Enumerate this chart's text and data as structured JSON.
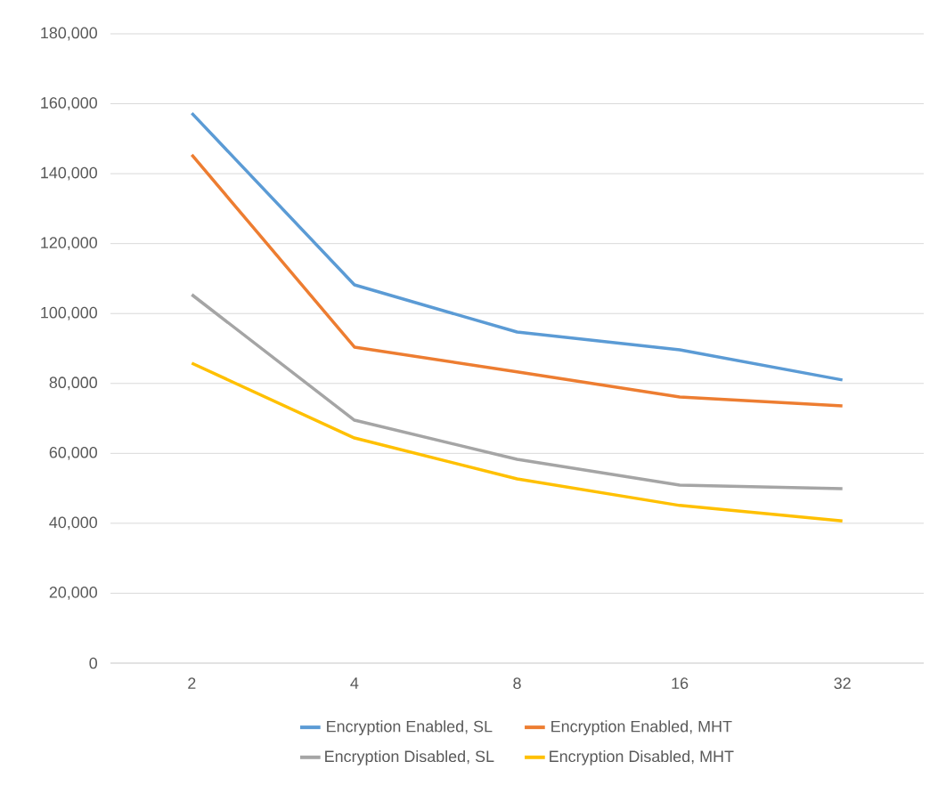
{
  "chart_data": {
    "type": "line",
    "categories": [
      "2",
      "4",
      "8",
      "16",
      "32"
    ],
    "series": [
      {
        "name": "Encryption Enabled, SL",
        "color": "#5b9bd5",
        "values": [
          157300,
          108200,
          94700,
          89600,
          81000
        ]
      },
      {
        "name": "Encryption Enabled, MHT",
        "color": "#ed7d31",
        "values": [
          145400,
          90400,
          83300,
          76100,
          73600
        ]
      },
      {
        "name": "Encryption Disabled, SL",
        "color": "#a5a5a5",
        "values": [
          105400,
          69500,
          58300,
          50900,
          49900
        ]
      },
      {
        "name": "Encryption Disabled, MHT",
        "color": "#ffc000",
        "values": [
          85800,
          64400,
          52700,
          45100,
          40700
        ]
      }
    ],
    "ylim": [
      0,
      180000
    ],
    "yticks": [
      0,
      {
        "value": 20000,
        "label": "20,000"
      },
      {
        "value": 40000,
        "label": "40,000"
      },
      {
        "value": 60000,
        "label": "60,000"
      },
      {
        "value": 80000,
        "label": "80,000"
      },
      {
        "value": 100000,
        "label": "100,000"
      },
      {
        "value": 120000,
        "label": "120,000"
      },
      {
        "value": 140000,
        "label": "140,000"
      },
      {
        "value": 160000,
        "label": "160,000"
      },
      {
        "value": 180000,
        "label": "180,000"
      }
    ],
    "grid": "y",
    "legend": "bottom",
    "marker": "none",
    "line_style": "solid"
  }
}
